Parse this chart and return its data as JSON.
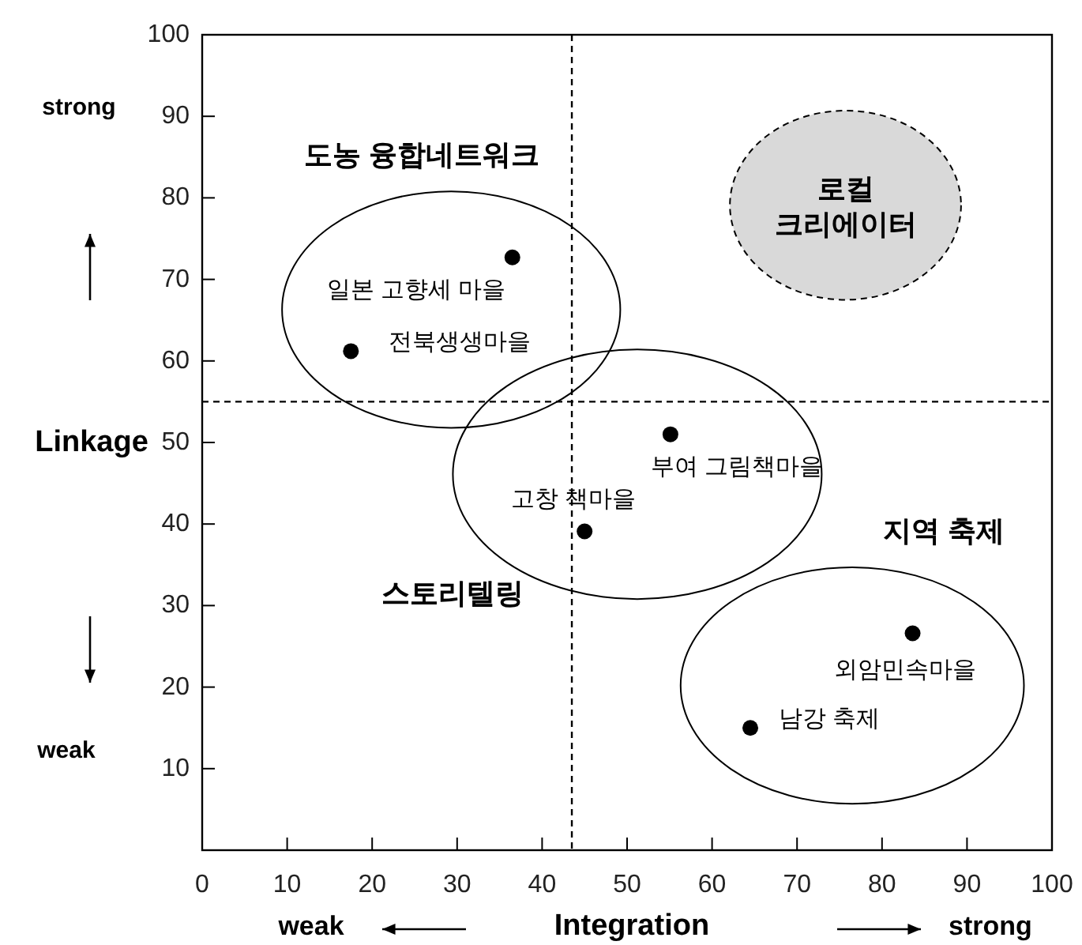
{
  "chart_data": {
    "type": "scatter",
    "xlabel": "Integration",
    "ylabel": "Linkage",
    "x": [
      36.5,
      17.5,
      55.1,
      45.0,
      83.6,
      64.5
    ],
    "series": [
      {
        "color": "#000000",
        "values": [
          72.7,
          61.2,
          51.0,
          39.1,
          26.6,
          15.0
        ]
      }
    ],
    "marker": "circle",
    "xlim": [
      0,
      100
    ],
    "ylim": [
      0,
      100
    ],
    "xticks": [
      0,
      10,
      20,
      30,
      40,
      50,
      60,
      70,
      80,
      90,
      100
    ],
    "yticks": [
      10,
      20,
      30,
      40,
      50,
      60,
      70,
      80,
      90,
      100
    ],
    "ref_lines": [
      {
        "axis": "x",
        "value": 43.5,
        "color": "#000000",
        "line_style": "dashed"
      },
      {
        "axis": "y",
        "value": 55.0,
        "color": "#000000",
        "line_style": "dashed"
      }
    ],
    "annotations": [
      "strong",
      "weak",
      "weak",
      "strong",
      "도농 융합네트워크",
      "로컬 크리에이터",
      "스토리텔링",
      "지역 축제",
      "일본 고향세 마을",
      "전북생생마을",
      "부여 그림책마을",
      "고창 책마을",
      "외암민속마을",
      "남강 축제"
    ]
  }
}
